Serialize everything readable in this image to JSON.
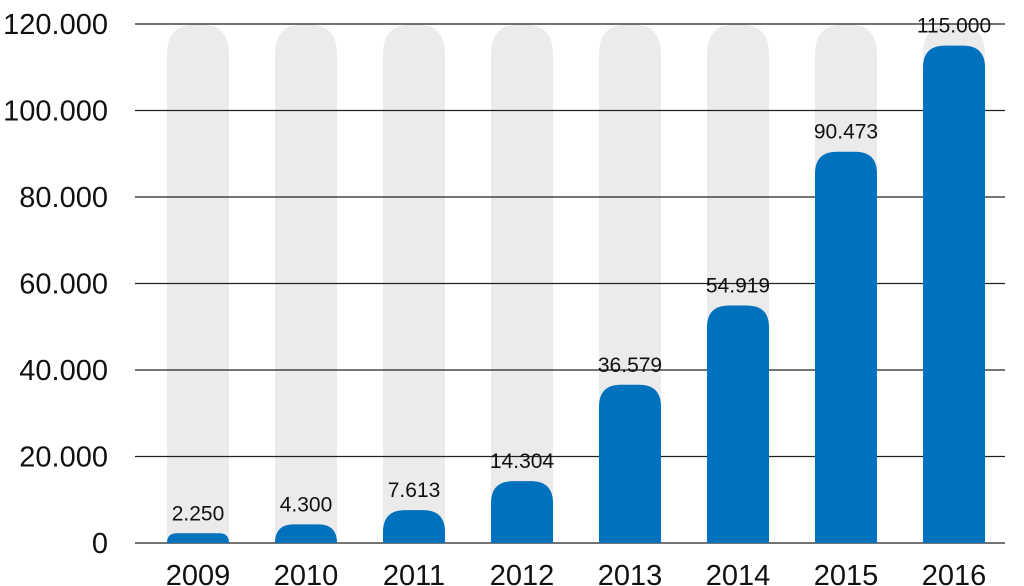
{
  "chart_data": {
    "type": "bar",
    "categories": [
      "2009",
      "2010",
      "2011",
      "2012",
      "2013",
      "2014",
      "2015",
      "2016"
    ],
    "values": [
      2250,
      4300,
      7613,
      14304,
      36579,
      54919,
      90473,
      115000
    ],
    "value_labels": [
      "2.250",
      "4.300",
      "7.613",
      "14.304",
      "36.579",
      "54.919",
      "90.473",
      "115.000"
    ],
    "ylim": [
      0,
      120000
    ],
    "yticks": [
      0,
      20000,
      40000,
      60000,
      80000,
      100000,
      120000
    ],
    "ytick_labels": [
      "0",
      "20.000",
      "40.000",
      "60.000",
      "80.000",
      "100.000",
      "120.000"
    ],
    "grid": true,
    "colors": {
      "bar": "#0071bc",
      "track": "#ebebeb",
      "grid": "#222222"
    }
  }
}
